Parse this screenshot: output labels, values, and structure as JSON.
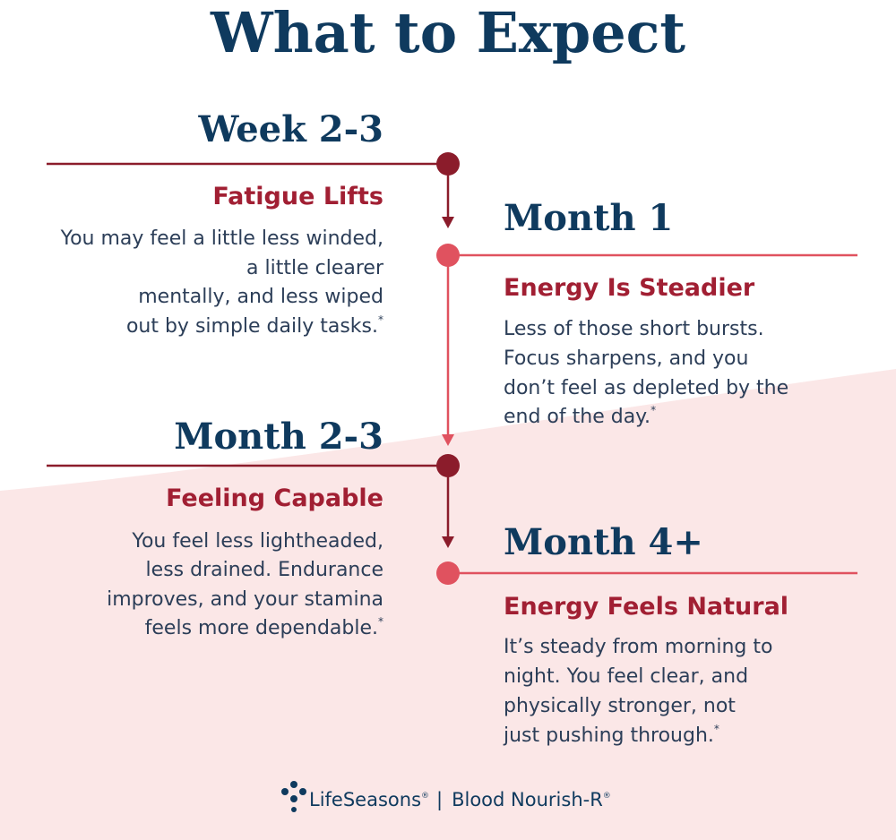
{
  "title": "What to Expect",
  "timeline": {
    "items": [
      {
        "period": "Week 2-3",
        "heading": "Fatigue Lifts",
        "body_lines": [
          "You may feel a little less winded,",
          "a little clearer",
          "mentally, and less wiped",
          "out by simple daily tasks."
        ],
        "note_mark": "*"
      },
      {
        "period": "Month 1",
        "heading": "Energy Is Steadier",
        "body_lines": [
          "Less of those short bursts.",
          "Focus sharpens, and you",
          "don’t feel as depleted by the",
          "end of the day."
        ],
        "note_mark": "*"
      },
      {
        "period": "Month 2-3",
        "heading": "Feeling Capable",
        "body_lines": [
          "You feel less lightheaded,",
          "less drained. Endurance",
          "improves, and your stamina",
          "feels more dependable."
        ],
        "note_mark": "*"
      },
      {
        "period": "Month 4+",
        "heading": "Energy Feels Natural",
        "body_lines": [
          "It’s steady from morning to",
          "night. You feel clear, and",
          "physically stronger, not",
          "just pushing through."
        ],
        "note_mark": "*"
      }
    ]
  },
  "footer": {
    "brand": "LifeSeasons",
    "brand_mark": "®",
    "product": "Blood Nourish-R",
    "product_mark": "®"
  }
}
